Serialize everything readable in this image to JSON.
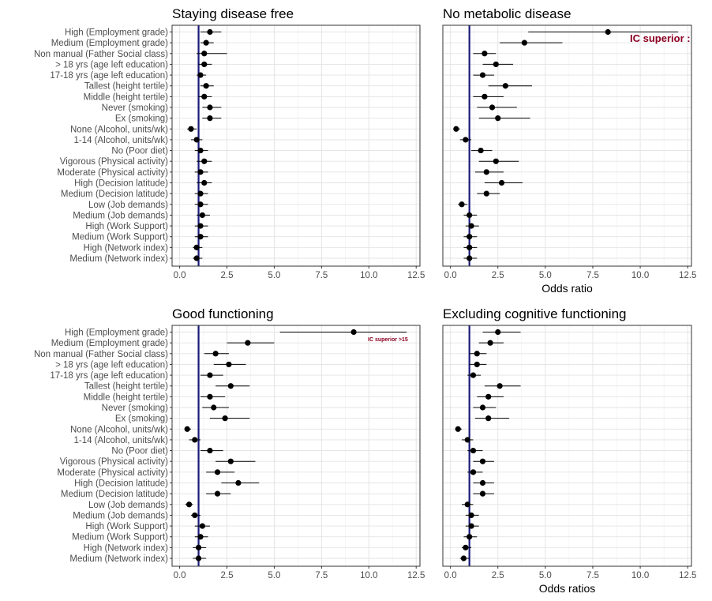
{
  "chart_data": [
    {
      "type": "forest",
      "title": "Staying disease free",
      "xlabel": "",
      "xlim": [
        -0.4,
        12.7
      ],
      "xticks": [
        0.0,
        2.5,
        5.0,
        7.5,
        10.0,
        12.5
      ],
      "xtick_labels": [
        "0.0",
        "2.5",
        "5.0",
        "7.5",
        "10.0",
        "12.5"
      ],
      "reference_line": 1,
      "grid": true,
      "categories": [
        "High (Employment grade)",
        "Medium (Employment grade)",
        "Non manual (Father Social class)",
        "> 18 yrs (age left education)",
        "17-18 yrs (age left education)",
        "Tallest (height tertile)",
        "Middle (height tertile)",
        "Never (smoking)",
        "Ex (smoking)",
        "None (Alcohol, units/wk)",
        "1-14 (Alcohol, units/wk)",
        "No (Poor diet)",
        "Vigorous (Physical activity)",
        "Moderate (Physical activity)",
        "High (Decision latitude)",
        "Medium (Decision latitude)",
        "Low (Job demands)",
        "Medium (Job demands)",
        "High (Work Support)",
        "Medium (Work Support)",
        "High (Network index)",
        "Medium (Network index)"
      ],
      "estimates": [
        1.6,
        1.4,
        1.3,
        1.3,
        1.1,
        1.4,
        1.3,
        1.6,
        1.6,
        0.6,
        0.9,
        1.1,
        1.3,
        1.1,
        1.3,
        1.1,
        1.1,
        1.2,
        1.1,
        1.1,
        0.9,
        0.9
      ],
      "lower": [
        1.1,
        1.1,
        0.9,
        1.0,
        0.9,
        1.1,
        1.0,
        1.2,
        1.2,
        0.4,
        0.6,
        0.8,
        0.9,
        0.8,
        0.9,
        0.8,
        0.8,
        0.9,
        0.8,
        0.8,
        0.7,
        0.7
      ],
      "upper": [
        2.2,
        1.8,
        2.5,
        1.7,
        1.4,
        1.8,
        1.7,
        2.2,
        2.2,
        0.9,
        1.2,
        1.5,
        1.7,
        1.5,
        1.7,
        1.5,
        1.5,
        1.6,
        1.5,
        1.5,
        1.2,
        1.2
      ],
      "annotation": ""
    },
    {
      "type": "forest",
      "title": "No metabolic disease",
      "xlabel": "Odds ratio",
      "xlim": [
        -0.4,
        12.7
      ],
      "xticks": [
        0.0,
        2.5,
        5.0,
        7.5,
        10.0,
        12.5
      ],
      "xtick_labels": [
        "0.0",
        "2.5",
        "5.0",
        "7.5",
        "10.0",
        "12.5"
      ],
      "reference_line": 1,
      "grid": true,
      "categories": [
        "High (Employment grade)",
        "Medium (Employment grade)",
        "Non manual (Father Social class)",
        "> 18 yrs (age left education)",
        "17-18 yrs (age left education)",
        "Tallest (height tertile)",
        "Middle (height tertile)",
        "Never (smoking)",
        "Ex (smoking)",
        "None (Alcohol, units/wk)",
        "1-14 (Alcohol, units/wk)",
        "No (Poor diet)",
        "Vigorous (Physical activity)",
        "Moderate (Physical activity)",
        "High (Decision latitude)",
        "Medium (Decision latitude)",
        "Low (Job demands)",
        "Medium (Job demands)",
        "High (Work Support)",
        "Medium (Work Support)",
        "High (Network index)",
        "Medium (Network index)"
      ],
      "estimates": [
        8.3,
        3.9,
        1.8,
        2.4,
        1.7,
        2.9,
        1.8,
        2.2,
        2.5,
        0.3,
        0.8,
        1.6,
        2.4,
        1.9,
        2.7,
        1.9,
        0.6,
        1.0,
        1.1,
        1.0,
        1.0,
        1.0
      ],
      "lower": [
        4.1,
        2.6,
        1.2,
        1.7,
        1.2,
        2.0,
        1.2,
        1.4,
        1.5,
        0.2,
        0.5,
        1.1,
        1.5,
        1.3,
        1.8,
        1.4,
        0.4,
        0.7,
        0.8,
        0.7,
        0.7,
        0.7
      ],
      "upper": [
        12.0,
        5.9,
        2.4,
        3.3,
        2.3,
        4.3,
        2.8,
        3.5,
        4.2,
        0.5,
        1.1,
        2.2,
        3.6,
        2.8,
        3.8,
        2.6,
        0.9,
        1.4,
        1.5,
        1.4,
        1.4,
        1.4
      ],
      "annotation": "IC superior :"
    },
    {
      "type": "forest",
      "title": "Good functioning",
      "xlabel": "",
      "xlim": [
        -0.4,
        12.7
      ],
      "xticks": [
        0.0,
        2.5,
        5.0,
        7.5,
        10.0,
        12.5
      ],
      "xtick_labels": [
        "0.0",
        "2.5",
        "5.0",
        "7.5",
        "10.0",
        "12.5"
      ],
      "reference_line": 1,
      "grid": true,
      "categories": [
        "High (Employment grade)",
        "Medium (Employment grade)",
        "Non manual (Father Social class)",
        "> 18 yrs (age left education)",
        "17-18 yrs (age left education)",
        "Tallest (height tertile)",
        "Middle (height tertile)",
        "Never (smoking)",
        "Ex (smoking)",
        "None (Alcohol, units/wk)",
        "1-14 (Alcohol, units/wk)",
        "No (Poor diet)",
        "Vigorous (Physical activity)",
        "Moderate (Physical activity)",
        "High (Decision latitude)",
        "Medium (Decision latitude)",
        "Low (Job demands)",
        "Medium (Job demands)",
        "High (Work Support)",
        "Medium (Work Support)",
        "High (Network index)",
        "Medium (Network index)"
      ],
      "estimates": [
        9.2,
        3.6,
        1.9,
        2.6,
        1.6,
        2.7,
        1.6,
        1.8,
        2.4,
        0.4,
        0.8,
        1.6,
        2.7,
        2.0,
        3.1,
        2.0,
        0.5,
        0.8,
        1.2,
        1.1,
        1.0,
        1.0
      ],
      "lower": [
        5.3,
        2.5,
        1.3,
        1.8,
        1.1,
        1.9,
        1.1,
        1.2,
        1.6,
        0.3,
        0.5,
        1.1,
        1.9,
        1.4,
        2.2,
        1.4,
        0.3,
        0.6,
        0.8,
        0.8,
        0.7,
        0.7
      ],
      "upper": [
        12.0,
        5.0,
        2.6,
        3.5,
        2.3,
        3.7,
        2.4,
        2.6,
        3.7,
        0.6,
        1.1,
        2.3,
        4.0,
        2.9,
        4.2,
        2.7,
        0.7,
        1.1,
        1.6,
        1.5,
        1.4,
        1.4
      ],
      "annotation": "IC superior >15"
    },
    {
      "type": "forest",
      "title": "Excluding cognitive functioning",
      "xlabel": "Odds ratios",
      "xlim": [
        -0.4,
        12.7
      ],
      "xticks": [
        0.0,
        2.5,
        5.0,
        7.5,
        10.0,
        12.5
      ],
      "xtick_labels": [
        "0.0",
        "2.5",
        "5.0",
        "7.5",
        "10.0",
        "12.5"
      ],
      "reference_line": 1,
      "grid": true,
      "categories": [
        "High (Employment grade)",
        "Medium (Employment grade)",
        "Non manual (Father Social class)",
        "> 18 yrs (age left education)",
        "17-18 yrs (age left education)",
        "Tallest (height tertile)",
        "Middle (height tertile)",
        "Never (smoking)",
        "Ex (smoking)",
        "None (Alcohol, units/wk)",
        "1-14 (Alcohol, units/wk)",
        "No (Poor diet)",
        "Vigorous (Physical activity)",
        "Moderate (Physical activity)",
        "High (Decision latitude)",
        "Medium (Decision latitude)",
        "Low (Job demands)",
        "Medium (Job demands)",
        "High (Work Support)",
        "Medium (Work Support)",
        "High (Network index)",
        "Medium (Network index)"
      ],
      "estimates": [
        2.5,
        2.1,
        1.4,
        1.4,
        1.2,
        2.6,
        2.0,
        1.7,
        2.0,
        0.4,
        0.9,
        1.2,
        1.7,
        1.2,
        1.7,
        1.7,
        0.9,
        1.1,
        1.1,
        1.0,
        0.8,
        0.7
      ],
      "lower": [
        1.7,
        1.5,
        1.0,
        1.0,
        0.9,
        1.8,
        1.4,
        1.2,
        1.3,
        0.3,
        0.6,
        0.9,
        1.2,
        0.9,
        1.2,
        1.2,
        0.6,
        0.8,
        0.8,
        0.7,
        0.6,
        0.5
      ],
      "upper": [
        3.7,
        2.8,
        1.9,
        1.9,
        1.6,
        3.7,
        2.8,
        2.4,
        3.1,
        0.6,
        1.2,
        1.7,
        2.3,
        1.7,
        2.3,
        2.3,
        1.2,
        1.5,
        1.5,
        1.4,
        1.1,
        1.0
      ],
      "annotation": ""
    }
  ],
  "colors": {
    "reference_line": "#1a1a7a",
    "points": "#000000",
    "annotation": "#8b0022",
    "grid": "#e3e3e3",
    "axis_text": "#4d4d4d"
  }
}
